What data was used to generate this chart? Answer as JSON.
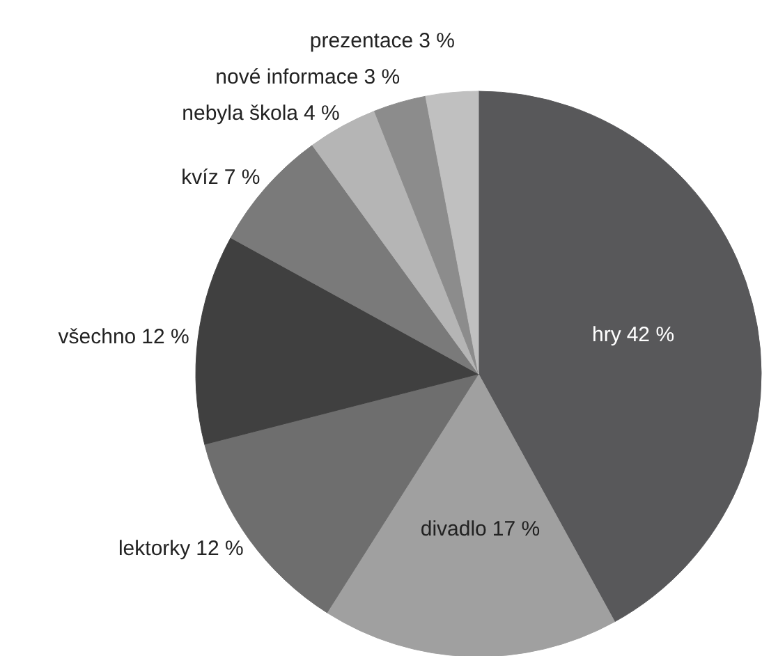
{
  "chart_data": {
    "type": "pie",
    "categories": [
      "hry",
      "divadlo",
      "lektorky",
      "všechno",
      "kvíz",
      "nebyla škola",
      "nové informace",
      "prezentace"
    ],
    "values": [
      42,
      17,
      12,
      12,
      7,
      4,
      3,
      3
    ],
    "value_labels": [
      "42 %",
      "17 %",
      "12 %",
      "12 %",
      "7 %",
      "4 %",
      "3 %",
      "3 %"
    ],
    "colors": [
      "#58585a",
      "#a0a0a0",
      "#6e6e6e",
      "#404040",
      "#7a7a7a",
      "#b5b5b5",
      "#8c8c8c",
      "#c0c0c0"
    ]
  }
}
